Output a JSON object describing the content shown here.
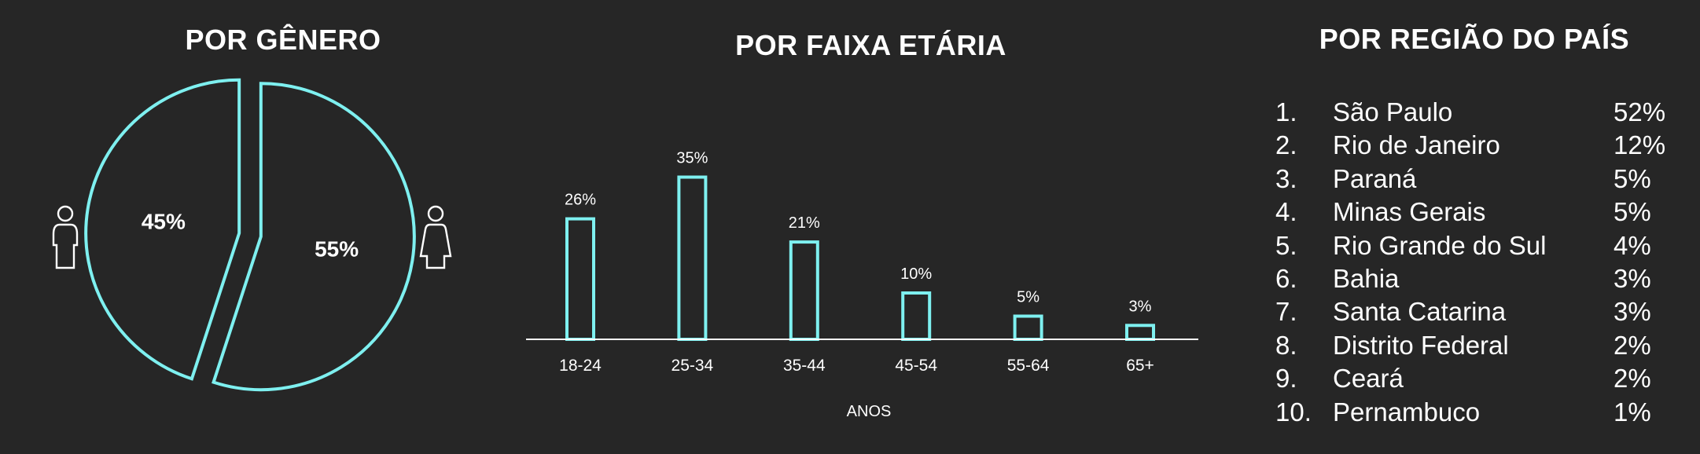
{
  "colors": {
    "background": "#262626",
    "accent": "#7ef0f0",
    "text": "#ffffff"
  },
  "gender": {
    "title": "POR GÊNERO",
    "icons": [
      "male-icon",
      "female-icon"
    ],
    "chart_data": {
      "type": "pie",
      "labels": [
        "",
        ""
      ],
      "values": [
        45,
        55
      ],
      "value_labels": [
        "45%",
        "55%"
      ]
    }
  },
  "age": {
    "title": "POR FAIXA ETÁRIA",
    "chart_data": {
      "type": "bar",
      "categories": [
        "18-24",
        "25-34",
        "35-44",
        "45-54",
        "55-64",
        "65+"
      ],
      "values": [
        26,
        35,
        21,
        10,
        5,
        3
      ],
      "value_labels": [
        "26%",
        "35%",
        "21%",
        "10%",
        "5%",
        "3%"
      ],
      "xlabel": "ANOS",
      "ylabel": ""
    }
  },
  "region": {
    "title": "POR REGIÃO DO PAÍS",
    "items": [
      {
        "rank": "1.",
        "name": "São Paulo",
        "value": "52%"
      },
      {
        "rank": "2.",
        "name": "Rio de Janeiro",
        "value": "12%"
      },
      {
        "rank": "3.",
        "name": "Paraná",
        "value": "5%"
      },
      {
        "rank": "4.",
        "name": "Minas Gerais",
        "value": "5%"
      },
      {
        "rank": "5.",
        "name": "Rio Grande do Sul",
        "value": "4%"
      },
      {
        "rank": "6.",
        "name": "Bahia",
        "value": "3%"
      },
      {
        "rank": "7.",
        "name": "Santa Catarina",
        "value": "3%"
      },
      {
        "rank": "8.",
        "name": "Distrito Federal",
        "value": "2%"
      },
      {
        "rank": "9.",
        "name": "Ceará",
        "value": "2%"
      },
      {
        "rank": "10.",
        "name": "Pernambuco",
        "value": "1%"
      }
    ]
  }
}
